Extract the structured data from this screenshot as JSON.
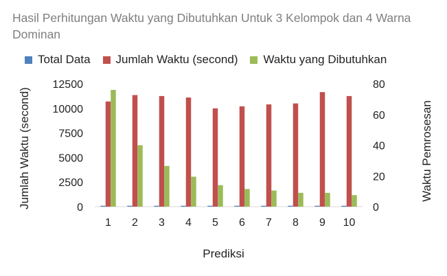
{
  "chart_data": {
    "type": "bar",
    "title": "Hasil Perhitungan Waktu yang Dibutuhkan Untuk 3 Kelompok dan 4 Warna Dominan",
    "xlabel": "Prediksi",
    "ylabel": "Jumlah Waktu (second)",
    "y2label": "Waktu Pemrosesan",
    "categories": [
      "1",
      "2",
      "3",
      "4",
      "5",
      "6",
      "7",
      "8",
      "9",
      "10"
    ],
    "ylim": [
      0,
      12500
    ],
    "y2lim": [
      0,
      80
    ],
    "yticks": [
      "0",
      "2500",
      "5000",
      "7500",
      "10000",
      "12500"
    ],
    "y2ticks": [
      "0",
      "20",
      "40",
      "60",
      "80"
    ],
    "grid": false,
    "legend_position": "top",
    "series": [
      {
        "name": "Total Data",
        "axis": "left",
        "color": "#4f81bd",
        "values": [
          90,
          90,
          90,
          90,
          90,
          90,
          90,
          90,
          90,
          90
        ]
      },
      {
        "name": "Jumlah Waktu (second)",
        "axis": "left",
        "color": "#c0504d",
        "values": [
          10700,
          11350,
          11250,
          11100,
          10000,
          10200,
          10400,
          10500,
          11650,
          11250
        ]
      },
      {
        "name": "Waktu yang Dibutuhkan",
        "axis": "right",
        "color": "#9bbb59",
        "values": [
          76,
          40,
          26.5,
          19.5,
          14,
          11.5,
          10.5,
          9,
          9,
          7.5
        ]
      }
    ]
  }
}
